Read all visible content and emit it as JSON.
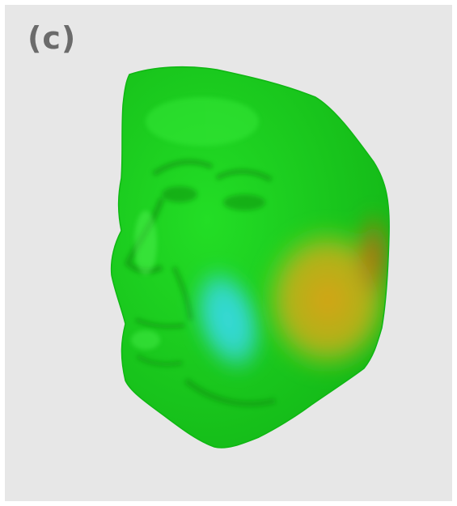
{
  "figure": {
    "panel_label": "(c)"
  },
  "colors": {
    "background": "#e7e7e7",
    "surface_base": "#18d51c",
    "deviation_low": "#35d9dd",
    "deviation_high": "#d59a16",
    "deviation_peak": "#bf6b10",
    "label_text": "#6b6b6b"
  }
}
